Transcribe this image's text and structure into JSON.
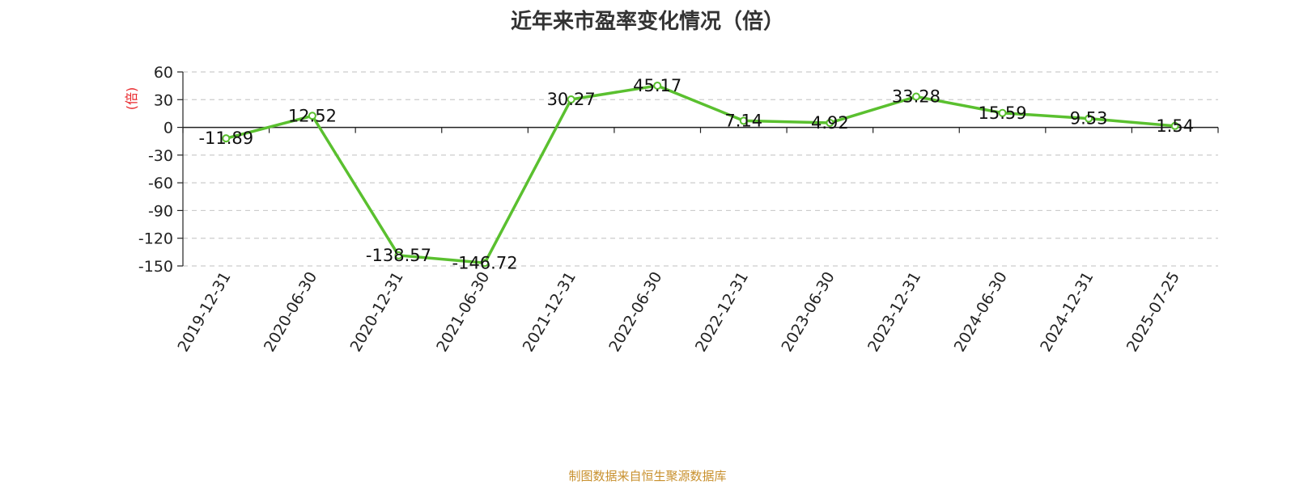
{
  "chart_data": {
    "type": "line",
    "title": "近年来市盈率变化情况（倍）",
    "ylabel": "(倍)",
    "xlabel": "",
    "categories": [
      "2019-12-31",
      "2020-06-30",
      "2020-12-31",
      "2021-06-30",
      "2021-12-31",
      "2022-06-30",
      "2022-12-31",
      "2023-06-30",
      "2023-12-31",
      "2024-06-30",
      "2024-12-31",
      "2025-07-25"
    ],
    "series": [
      {
        "values": [
          -11.89,
          12.52,
          -138.57,
          -146.72,
          30.27,
          45.17,
          7.14,
          4.92,
          33.28,
          15.59,
          9.53,
          1.54
        ],
        "labels": [
          "-11.89",
          "12.52",
          "-138.57",
          "-146.72",
          "30.27",
          "45.17",
          "7.14",
          "4.92",
          "33.28",
          "15.59",
          "9.53",
          "1.54"
        ]
      }
    ],
    "yticks": [
      "60",
      "30",
      "0",
      "-30",
      "-60",
      "-90",
      "-120",
      "-150"
    ],
    "ytick_values": [
      60,
      30,
      0,
      -30,
      -60,
      -90,
      -120,
      -150
    ],
    "ylim": [
      -150,
      60
    ],
    "grid": true,
    "legend": "none",
    "colors": {
      "line": "#5ac02f",
      "unit_label": "#e8262a",
      "grid": "#cccccc",
      "axis": "#222222"
    }
  },
  "source": "制图数据来自恒生聚源数据库"
}
